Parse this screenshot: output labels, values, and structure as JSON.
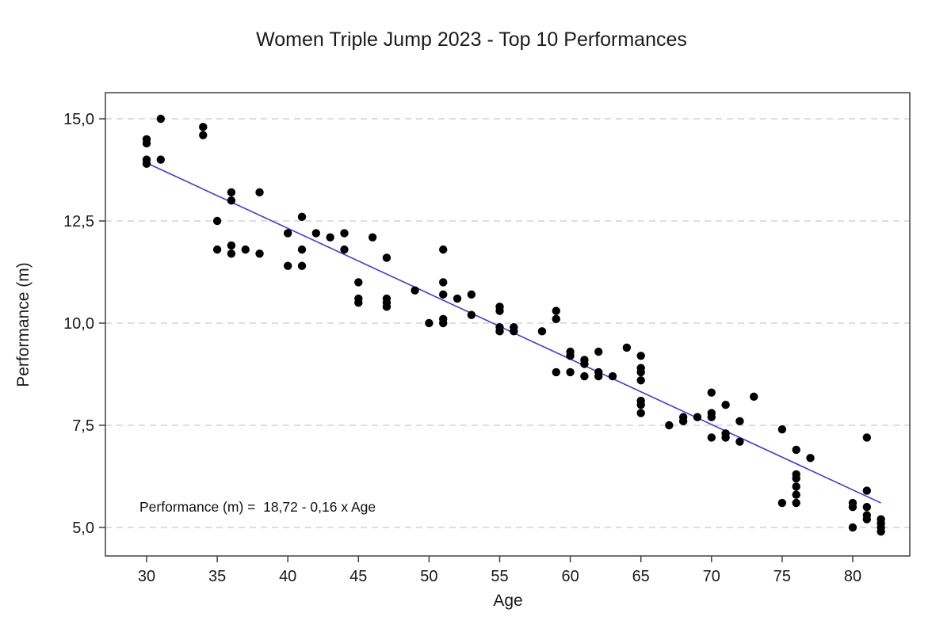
{
  "title": "Women Triple Jump 2023 - Top 10 Performances",
  "chart_data": {
    "type": "scatter",
    "title": "Women Triple Jump 2023 - Top 10 Performances",
    "xlabel": "Age",
    "ylabel": "Performance (m)",
    "annotation": "Performance (m) =  18,72 - 0,16 x Age",
    "grid": "horizontal-dashed",
    "legend": "none",
    "xlim": [
      27.1,
      84.0
    ],
    "ylim": [
      4.45,
      15.65
    ],
    "x_tick_values": [
      30,
      35,
      40,
      45,
      50,
      55,
      60,
      65,
      70,
      75,
      80
    ],
    "x_tick_labels": [
      "30",
      "35",
      "40",
      "45",
      "50",
      "55",
      "60",
      "65",
      "70",
      "75",
      "80"
    ],
    "y_tick_values": [
      15.0,
      12.5,
      10.0,
      7.5,
      5.0
    ],
    "y_tick_labels": [
      "15,0",
      "12,5",
      "10,0",
      "7,5",
      "5,0"
    ],
    "regression": {
      "intercept": 18.72,
      "slope": -0.16,
      "x_start": 30,
      "x_end": 82
    },
    "points": [
      [
        30,
        14.5
      ],
      [
        30,
        14.4
      ],
      [
        30,
        14.0
      ],
      [
        30,
        13.9
      ],
      [
        31,
        15.0
      ],
      [
        31,
        14.0
      ],
      [
        34,
        14.8
      ],
      [
        34,
        14.6
      ],
      [
        35,
        12.5
      ],
      [
        35,
        11.8
      ],
      [
        36,
        13.2
      ],
      [
        36,
        13.0
      ],
      [
        36,
        11.9
      ],
      [
        36,
        11.7
      ],
      [
        37,
        11.8
      ],
      [
        38,
        13.2
      ],
      [
        38,
        11.7
      ],
      [
        40,
        12.2
      ],
      [
        40,
        11.4
      ],
      [
        41,
        12.6
      ],
      [
        41,
        11.8
      ],
      [
        41,
        11.4
      ],
      [
        42,
        12.2
      ],
      [
        43,
        12.1
      ],
      [
        44,
        12.2
      ],
      [
        44,
        11.8
      ],
      [
        45,
        11.0
      ],
      [
        45,
        10.6
      ],
      [
        45,
        10.5
      ],
      [
        46,
        12.1
      ],
      [
        47,
        11.6
      ],
      [
        47,
        10.6
      ],
      [
        47,
        10.5
      ],
      [
        47,
        10.4
      ],
      [
        49,
        10.8
      ],
      [
        50,
        10.0
      ],
      [
        51,
        11.8
      ],
      [
        51,
        11.0
      ],
      [
        51,
        10.7
      ],
      [
        51,
        10.1
      ],
      [
        51,
        10.0
      ],
      [
        52,
        10.6
      ],
      [
        53,
        10.7
      ],
      [
        53,
        10.2
      ],
      [
        55,
        10.4
      ],
      [
        55,
        10.3
      ],
      [
        55,
        9.9
      ],
      [
        55,
        9.8
      ],
      [
        56,
        9.9
      ],
      [
        56,
        9.8
      ],
      [
        58,
        9.8
      ],
      [
        59,
        10.3
      ],
      [
        59,
        10.1
      ],
      [
        59,
        8.8
      ],
      [
        60,
        9.3
      ],
      [
        60,
        9.2
      ],
      [
        60,
        8.8
      ],
      [
        61,
        9.1
      ],
      [
        61,
        9.0
      ],
      [
        61,
        8.7
      ],
      [
        62,
        9.3
      ],
      [
        62,
        8.8
      ],
      [
        62,
        8.7
      ],
      [
        63,
        8.7
      ],
      [
        64,
        9.4
      ],
      [
        65,
        9.2
      ],
      [
        65,
        8.9
      ],
      [
        65,
        8.8
      ],
      [
        65,
        8.6
      ],
      [
        65,
        8.1
      ],
      [
        65,
        8.0
      ],
      [
        65,
        7.8
      ],
      [
        67,
        7.5
      ],
      [
        68,
        7.7
      ],
      [
        68,
        7.6
      ],
      [
        69,
        7.7
      ],
      [
        70,
        8.3
      ],
      [
        70,
        7.8
      ],
      [
        70,
        7.7
      ],
      [
        70,
        7.2
      ],
      [
        71,
        8.0
      ],
      [
        71,
        7.3
      ],
      [
        71,
        7.2
      ],
      [
        72,
        7.6
      ],
      [
        72,
        7.1
      ],
      [
        73,
        8.2
      ],
      [
        75,
        7.4
      ],
      [
        75,
        5.6
      ],
      [
        76,
        6.9
      ],
      [
        76,
        6.3
      ],
      [
        76,
        6.2
      ],
      [
        76,
        6.0
      ],
      [
        76,
        5.8
      ],
      [
        76,
        5.6
      ],
      [
        77,
        6.7
      ],
      [
        80,
        5.6
      ],
      [
        80,
        5.5
      ],
      [
        80,
        5.0
      ],
      [
        81,
        7.2
      ],
      [
        81,
        5.9
      ],
      [
        81,
        5.5
      ],
      [
        81,
        5.3
      ],
      [
        81,
        5.2
      ],
      [
        82,
        5.2
      ],
      [
        82,
        5.1
      ],
      [
        82,
        5.0
      ],
      [
        82,
        4.9
      ]
    ],
    "colors": {
      "points": "#000000",
      "regression_line": "#3c3cdc",
      "gridline": "#c9c9c9",
      "axis": "#404040",
      "text": "#1a1a1a",
      "background": "#ffffff"
    }
  }
}
